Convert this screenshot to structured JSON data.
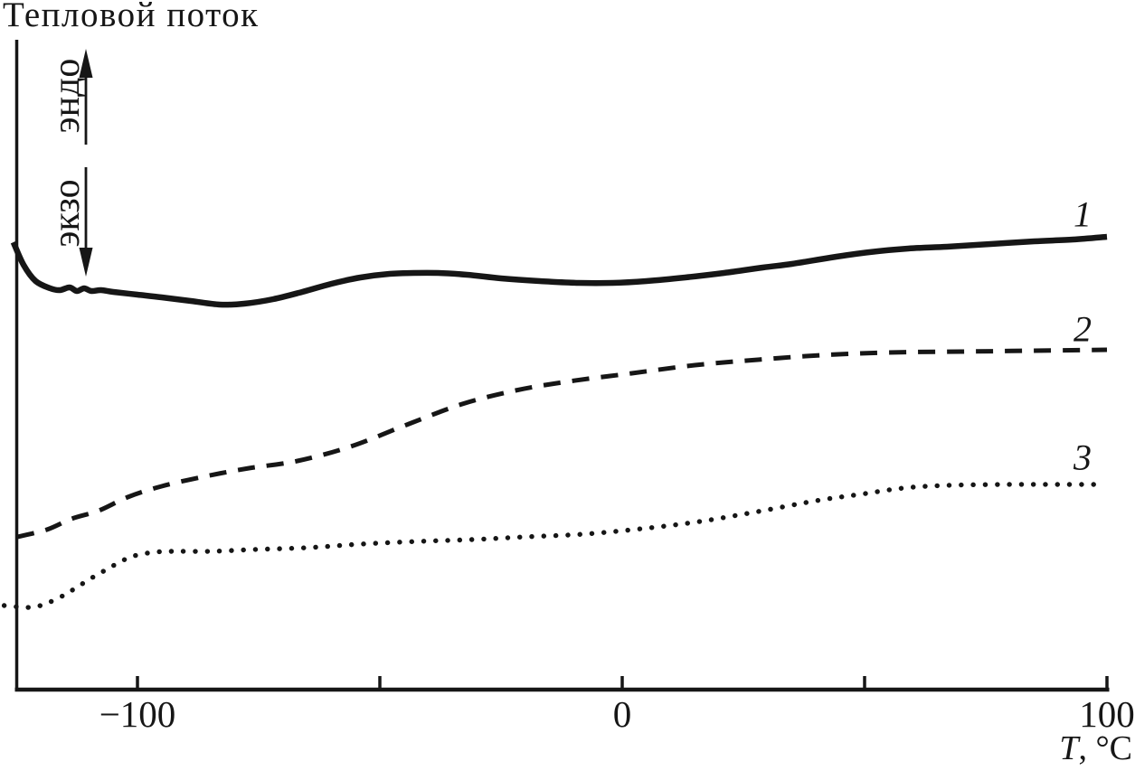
{
  "figure": {
    "title": "Тепловой поток",
    "endo_label": "эндо",
    "exo_label": "экзо",
    "x_axis_variable": "T",
    "x_axis_unit": ", °C",
    "ink_color": "#161616",
    "background_color": "#ffffff"
  },
  "chart_data": {
    "type": "line",
    "title": "",
    "ylabel": "Тепловой поток",
    "xlabel": "T, °C",
    "y_units": "arbitrary (higher = эндо, lower = экзо)",
    "grid": false,
    "legend_position": "curve numbers at right ends of curves",
    "xlim": [
      -125,
      100
    ],
    "x_axis": {
      "major_ticks": [
        {
          "value": -100,
          "label": "−100"
        },
        {
          "value": 0,
          "label": "0"
        },
        {
          "value": 100,
          "label": "100"
        }
      ],
      "minor_ticks": [
        -50,
        50
      ]
    },
    "annotations": [
      {
        "text": "эндо",
        "arrow": "up"
      },
      {
        "text": "экзо",
        "arrow": "down"
      }
    ],
    "series": [
      {
        "name": "1",
        "style": "solid",
        "points": [
          [
            -125.6,
            495
          ],
          [
            -123.5,
            470
          ],
          [
            -121,
            452
          ],
          [
            -118,
            444
          ],
          [
            -116,
            442
          ],
          [
            -114,
            445
          ],
          [
            -112.5,
            441
          ],
          [
            -111,
            444
          ],
          [
            -109.5,
            441
          ],
          [
            -107.5,
            442
          ],
          [
            -105,
            440
          ],
          [
            -100,
            437
          ],
          [
            -95,
            434
          ],
          [
            -89,
            430
          ],
          [
            -83,
            426
          ],
          [
            -78,
            427
          ],
          [
            -72,
            432
          ],
          [
            -66,
            440
          ],
          [
            -60,
            449
          ],
          [
            -54,
            456
          ],
          [
            -48,
            460
          ],
          [
            -43,
            461
          ],
          [
            -38,
            461
          ],
          [
            -32,
            459
          ],
          [
            -25,
            455
          ],
          [
            -17,
            452
          ],
          [
            -9,
            450
          ],
          [
            -2,
            450
          ],
          [
            5,
            452
          ],
          [
            13,
            456
          ],
          [
            21,
            461
          ],
          [
            29,
            467
          ],
          [
            35,
            471
          ],
          [
            43,
            478
          ],
          [
            51,
            484
          ],
          [
            59,
            488
          ],
          [
            67,
            490
          ],
          [
            76,
            493
          ],
          [
            85,
            496
          ],
          [
            93,
            498
          ],
          [
            100,
            501
          ]
        ]
      },
      {
        "name": "2",
        "style": "dashed",
        "points": [
          [
            -124.8,
            169
          ],
          [
            -118.7,
            177
          ],
          [
            -113.6,
            189
          ],
          [
            -108,
            198
          ],
          [
            -102,
            213
          ],
          [
            -95,
            225
          ],
          [
            -86,
            236
          ],
          [
            -77,
            245
          ],
          [
            -67,
            253
          ],
          [
            -56,
            269
          ],
          [
            -44,
            294
          ],
          [
            -33,
            316
          ],
          [
            -22,
            331
          ],
          [
            -11,
            341
          ],
          [
            2,
            350
          ],
          [
            15,
            359
          ],
          [
            28,
            365
          ],
          [
            41,
            370
          ],
          [
            55,
            373
          ],
          [
            70,
            374
          ],
          [
            85,
            375
          ],
          [
            100,
            376
          ]
        ]
      },
      {
        "name": "3",
        "style": "dotted",
        "points": [
          [
            -127.5,
            93
          ],
          [
            -122,
            91
          ],
          [
            -118.5,
            96
          ],
          [
            -115,
            105
          ],
          [
            -112,
            115
          ],
          [
            -109,
            125
          ],
          [
            -106,
            134
          ],
          [
            -103,
            143
          ],
          [
            -100,
            149
          ],
          [
            -96.5,
            152
          ],
          [
            -93,
            153
          ],
          [
            -85,
            153
          ],
          [
            -76,
            155
          ],
          [
            -65,
            157
          ],
          [
            -54,
            161
          ],
          [
            -42,
            164
          ],
          [
            -31,
            166
          ],
          [
            -20,
            169
          ],
          [
            -8,
            172
          ],
          [
            4,
            178
          ],
          [
            16,
            186
          ],
          [
            28,
            197
          ],
          [
            40,
            209
          ],
          [
            49,
            216
          ],
          [
            58,
            223
          ],
          [
            67,
            226
          ],
          [
            79,
            227
          ],
          [
            90,
            227
          ],
          [
            99,
            227
          ]
        ]
      }
    ]
  }
}
